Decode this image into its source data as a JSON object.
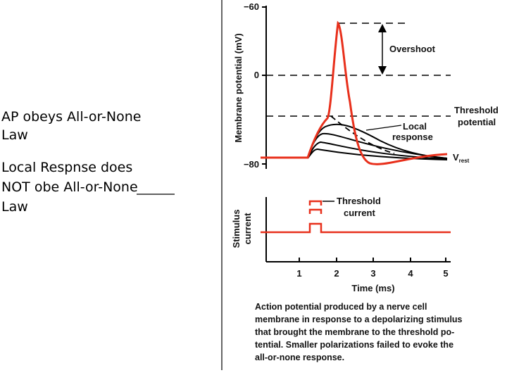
{
  "slide": {
    "left_text": [
      [
        "AP obeys All-or-None",
        "Law"
      ],
      [
        "Local Respnse does",
        "NOT obe All-or-None ",
        "Law"
      ]
    ],
    "figure": {
      "y_axis_label": "Membrane potential (mV)",
      "y_ticks": [
        "−60",
        "0",
        "−80"
      ],
      "overshoot": "Overshoot",
      "threshold_potential": [
        "Threshold",
        "potential"
      ],
      "local_response": [
        "Local",
        "response"
      ],
      "v_rest": "V",
      "v_rest_sub": "rest",
      "threshold_current": [
        "Threshold",
        "current"
      ],
      "stimulus_label": [
        "Stimulus",
        "current"
      ],
      "x_ticks": [
        "1",
        "2",
        "3",
        "4",
        "5"
      ],
      "x_axis_label": "Time (ms)",
      "caption": [
        "Action potential produced by a nerve cell",
        "membrane in response to a depolarizing stimulus",
        "that brought the membrane to the threshold po-",
        "tential. Smaller polarizations failed to evoke the",
        "all-or-none response."
      ]
    }
  }
}
